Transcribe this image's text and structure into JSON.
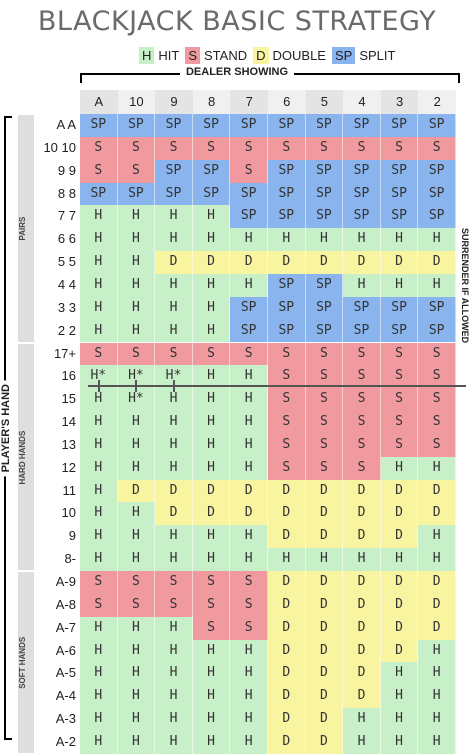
{
  "title": "BLACKJACK BASIC STRATEGY",
  "legend": [
    {
      "code": "H",
      "label": "HIT",
      "color": "#c8f0c8"
    },
    {
      "code": "S",
      "label": "STAND",
      "color": "#f09aa0"
    },
    {
      "code": "D",
      "label": "DOUBLE",
      "color": "#f8f4a0"
    },
    {
      "code": "SP",
      "label": "SPLIT",
      "color": "#8ab4ee"
    }
  ],
  "dealer_label": "DEALER SHOWING",
  "dealer_cards": [
    "A",
    "10",
    "9",
    "8",
    "7",
    "6",
    "5",
    "4",
    "3",
    "2"
  ],
  "players_label": "PLAYER'S HAND",
  "surrender_label": "SURRENDER IF ALLOWED",
  "groups": [
    {
      "label": "PAIRS"
    },
    {
      "label": "HARD HANDS"
    },
    {
      "label": "SOFT HANDS"
    }
  ],
  "rows": [
    {
      "hand": "A A",
      "cells": [
        "SP",
        "SP",
        "SP",
        "SP",
        "SP",
        "SP",
        "SP",
        "SP",
        "SP",
        "SP"
      ]
    },
    {
      "hand": "10 10",
      "cells": [
        "S",
        "S",
        "S",
        "S",
        "S",
        "S",
        "S",
        "S",
        "S",
        "S"
      ]
    },
    {
      "hand": "9 9",
      "cells": [
        "S",
        "S",
        "SP",
        "SP",
        "S",
        "SP",
        "SP",
        "SP",
        "SP",
        "SP"
      ]
    },
    {
      "hand": "8 8",
      "cells": [
        "SP",
        "SP",
        "SP",
        "SP",
        "SP",
        "SP",
        "SP",
        "SP",
        "SP",
        "SP"
      ]
    },
    {
      "hand": "7 7",
      "cells": [
        "H",
        "H",
        "H",
        "H",
        "SP",
        "SP",
        "SP",
        "SP",
        "SP",
        "SP"
      ]
    },
    {
      "hand": "6 6",
      "cells": [
        "H",
        "H",
        "H",
        "H",
        "H",
        "H",
        "H",
        "H",
        "H",
        "H"
      ]
    },
    {
      "hand": "5 5",
      "cells": [
        "H",
        "H",
        "D",
        "D",
        "D",
        "D",
        "D",
        "D",
        "D",
        "D"
      ]
    },
    {
      "hand": "4 4",
      "cells": [
        "H",
        "H",
        "H",
        "H",
        "H",
        "SP",
        "SP",
        "H",
        "H",
        "H"
      ]
    },
    {
      "hand": "3 3",
      "cells": [
        "H",
        "H",
        "H",
        "H",
        "SP",
        "SP",
        "SP",
        "SP",
        "SP",
        "SP"
      ]
    },
    {
      "hand": "2 2",
      "cells": [
        "H",
        "H",
        "H",
        "H",
        "SP",
        "SP",
        "SP",
        "SP",
        "SP",
        "SP"
      ]
    },
    {
      "hand": "17+",
      "cells": [
        "S",
        "S",
        "S",
        "S",
        "S",
        "S",
        "S",
        "S",
        "S",
        "S"
      ]
    },
    {
      "hand": "16",
      "cells": [
        "H*",
        "H*",
        "H*",
        "H",
        "H",
        "S",
        "S",
        "S",
        "S",
        "S"
      ]
    },
    {
      "hand": "15",
      "cells": [
        "H",
        "H*",
        "H",
        "H",
        "H",
        "S",
        "S",
        "S",
        "S",
        "S"
      ]
    },
    {
      "hand": "14",
      "cells": [
        "H",
        "H",
        "H",
        "H",
        "H",
        "S",
        "S",
        "S",
        "S",
        "S"
      ]
    },
    {
      "hand": "13",
      "cells": [
        "H",
        "H",
        "H",
        "H",
        "H",
        "S",
        "S",
        "S",
        "S",
        "S"
      ]
    },
    {
      "hand": "12",
      "cells": [
        "H",
        "H",
        "H",
        "H",
        "H",
        "S",
        "S",
        "S",
        "H",
        "H"
      ]
    },
    {
      "hand": "11",
      "cells": [
        "H",
        "D",
        "D",
        "D",
        "D",
        "D",
        "D",
        "D",
        "D",
        "D"
      ]
    },
    {
      "hand": "10",
      "cells": [
        "H",
        "H",
        "D",
        "D",
        "D",
        "D",
        "D",
        "D",
        "D",
        "D"
      ]
    },
    {
      "hand": "9",
      "cells": [
        "H",
        "H",
        "H",
        "H",
        "H",
        "D",
        "D",
        "D",
        "D",
        "H"
      ]
    },
    {
      "hand": "8-",
      "cells": [
        "H",
        "H",
        "H",
        "H",
        "H",
        "H",
        "H",
        "H",
        "H",
        "H"
      ]
    },
    {
      "hand": "A-9",
      "cells": [
        "S",
        "S",
        "S",
        "S",
        "S",
        "D",
        "D",
        "D",
        "D",
        "D"
      ]
    },
    {
      "hand": "A-8",
      "cells": [
        "S",
        "S",
        "S",
        "S",
        "S",
        "D",
        "D",
        "D",
        "D",
        "D"
      ]
    },
    {
      "hand": "A-7",
      "cells": [
        "H",
        "H",
        "H",
        "S",
        "S",
        "D",
        "D",
        "D",
        "D",
        "D"
      ]
    },
    {
      "hand": "A-6",
      "cells": [
        "H",
        "H",
        "H",
        "H",
        "H",
        "D",
        "D",
        "D",
        "D",
        "H"
      ]
    },
    {
      "hand": "A-5",
      "cells": [
        "H",
        "H",
        "H",
        "H",
        "H",
        "D",
        "D",
        "D",
        "H",
        "H"
      ]
    },
    {
      "hand": "A-4",
      "cells": [
        "H",
        "H",
        "H",
        "H",
        "H",
        "D",
        "D",
        "D",
        "H",
        "H"
      ]
    },
    {
      "hand": "A-3",
      "cells": [
        "H",
        "H",
        "H",
        "H",
        "H",
        "D",
        "D",
        "H",
        "H",
        "H"
      ]
    },
    {
      "hand": "A-2",
      "cells": [
        "H",
        "H",
        "H",
        "H",
        "H",
        "D",
        "D",
        "H",
        "H",
        "H"
      ]
    }
  ]
}
